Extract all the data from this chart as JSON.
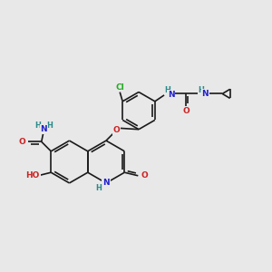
{
  "bg_color": "#e8e8e8",
  "bond_color": "#1a1a1a",
  "bond_width": 1.2,
  "atom_colors": {
    "C": "#1a1a1a",
    "N": "#2222cc",
    "O": "#cc2222",
    "H": "#2a8a8a",
    "Cl": "#22aa22"
  },
  "figsize": [
    3.0,
    3.0
  ],
  "dpi": 100
}
